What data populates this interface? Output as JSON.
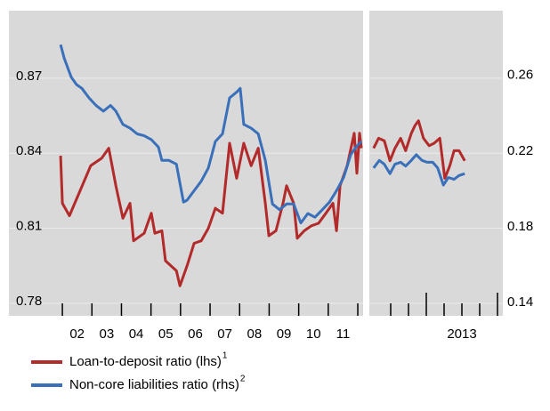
{
  "chart_data": {
    "type": "line",
    "ylim": [
      0.775,
      0.897
    ],
    "yticks": [
      0.78,
      0.81,
      0.84,
      0.87
    ],
    "y2lim": [
      0.134,
      0.295
    ],
    "y2ticks": [
      0.14,
      0.18,
      0.22,
      0.26
    ],
    "grid": true,
    "series": [
      {
        "name": "Loan-to-deposit ratio (lhs)",
        "superscript": "1",
        "color": "#b22a2a"
      },
      {
        "name": "Non-core liabilities ratio (rhs)",
        "superscript": "2",
        "color": "#3a6fba",
        "axis": "y2"
      }
    ],
    "panels": [
      {
        "xlim": [
          2000.19,
          2012.18
        ],
        "xticks": [
          2002,
          2003,
          2004,
          2005,
          2006,
          2007,
          2008,
          2009,
          2010,
          2011,
          2012
        ],
        "xtick_labels": [
          {
            "value": 2002.5,
            "label": "02"
          },
          {
            "value": 2003.5,
            "label": "03"
          },
          {
            "value": 2004.5,
            "label": "04"
          },
          {
            "value": 2005.5,
            "label": "05"
          },
          {
            "value": 2006.5,
            "label": "06"
          },
          {
            "value": 2007.5,
            "label": "07"
          },
          {
            "value": 2008.5,
            "label": "08"
          },
          {
            "value": 2009.5,
            "label": "09"
          },
          {
            "value": 2010.5,
            "label": "10"
          },
          {
            "value": 2011.5,
            "label": "11"
          }
        ],
        "series": [
          {
            "x": [
              2001.94,
              2002.0,
              2002.24,
              2002.6,
              2002.96,
              2003.33,
              2003.57,
              2003.81,
              2004.05,
              2004.29,
              2004.41,
              2004.77,
              2005.01,
              2005.13,
              2005.37,
              2005.49,
              2005.86,
              2005.98,
              2006.22,
              2006.46,
              2006.7,
              2006.94,
              2007.18,
              2007.42,
              2007.66,
              2007.9,
              2008.14,
              2008.39,
              2008.63,
              2008.87,
              2008.99,
              2009.23,
              2009.47,
              2009.59,
              2009.83,
              2009.95,
              2010.19,
              2010.43,
              2010.67,
              2010.92,
              2011.16,
              2011.28,
              2011.4,
              2011.64,
              2011.88,
              2011.97,
              2012.06,
              2012.12
            ],
            "values": [
              0.839,
              0.82,
              0.815,
              0.825,
              0.835,
              0.838,
              0.842,
              0.827,
              0.814,
              0.82,
              0.805,
              0.808,
              0.816,
              0.808,
              0.809,
              0.797,
              0.793,
              0.787,
              0.795,
              0.804,
              0.805,
              0.81,
              0.818,
              0.816,
              0.844,
              0.83,
              0.844,
              0.835,
              0.842,
              0.82,
              0.807,
              0.809,
              0.82,
              0.827,
              0.82,
              0.806,
              0.809,
              0.811,
              0.812,
              0.816,
              0.82,
              0.809,
              0.827,
              0.835,
              0.848,
              0.832,
              0.848,
              0.842
            ]
          },
          {
            "x": [
              2001.94,
              2002.06,
              2002.3,
              2002.48,
              2002.66,
              2002.9,
              2003.14,
              2003.39,
              2003.63,
              2003.81,
              2004.05,
              2004.29,
              2004.53,
              2004.77,
              2005.01,
              2005.25,
              2005.37,
              2005.61,
              2005.86,
              2006.1,
              2006.22,
              2006.46,
              2006.7,
              2006.94,
              2007.18,
              2007.42,
              2007.66,
              2007.9,
              2008.02,
              2008.14,
              2008.39,
              2008.63,
              2008.87,
              2009.11,
              2009.35,
              2009.59,
              2009.83,
              2010.07,
              2010.31,
              2010.55,
              2010.8,
              2011.04,
              2011.28,
              2011.52,
              2011.76,
              2011.94,
              2012.12
            ],
            "values": [
              0.277,
              0.27,
              0.26,
              0.256,
              0.254,
              0.249,
              0.245,
              0.242,
              0.245,
              0.242,
              0.235,
              0.233,
              0.23,
              0.229,
              0.227,
              0.223,
              0.216,
              0.216,
              0.214,
              0.194,
              0.195,
              0.2,
              0.205,
              0.212,
              0.226,
              0.23,
              0.249,
              0.252,
              0.254,
              0.235,
              0.233,
              0.23,
              0.216,
              0.193,
              0.19,
              0.193,
              0.193,
              0.183,
              0.188,
              0.186,
              0.19,
              0.194,
              0.2,
              0.207,
              0.219,
              0.223,
              0.226
            ]
          }
        ]
      },
      {
        "xlim": [
          2012.2,
          2014.075
        ],
        "xticks": [
          2012.5,
          2012.75,
          2013,
          2013.25,
          2013.5,
          2013.75,
          2014
        ],
        "major_xticks": [
          2013,
          2014
        ],
        "xtick_labels": [
          {
            "value": 2013.5,
            "label": "2013"
          }
        ],
        "series": [
          {
            "x": [
              2012.26,
              2012.33,
              2012.41,
              2012.49,
              2012.56,
              2012.64,
              2012.71,
              2012.79,
              2012.84,
              2012.89,
              2012.96,
              2013.04,
              2013.11,
              2013.19,
              2013.26,
              2013.33,
              2013.39,
              2013.46,
              2013.54
            ],
            "values": [
              0.842,
              0.846,
              0.845,
              0.837,
              0.842,
              0.846,
              0.841,
              0.848,
              0.851,
              0.853,
              0.846,
              0.843,
              0.844,
              0.846,
              0.83,
              0.835,
              0.841,
              0.841,
              0.837
            ]
          },
          {
            "x": [
              2012.26,
              2012.34,
              2012.41,
              2012.49,
              2012.56,
              2012.64,
              2012.71,
              2012.79,
              2012.86,
              2012.94,
              2013.01,
              2013.09,
              2013.16,
              2013.24,
              2013.31,
              2013.39,
              2013.46,
              2013.54
            ],
            "values": [
              0.212,
              0.216,
              0.214,
              0.209,
              0.214,
              0.215,
              0.213,
              0.216,
              0.219,
              0.216,
              0.215,
              0.215,
              0.212,
              0.203,
              0.207,
              0.206,
              0.208,
              0.209
            ]
          }
        ]
      }
    ]
  }
}
